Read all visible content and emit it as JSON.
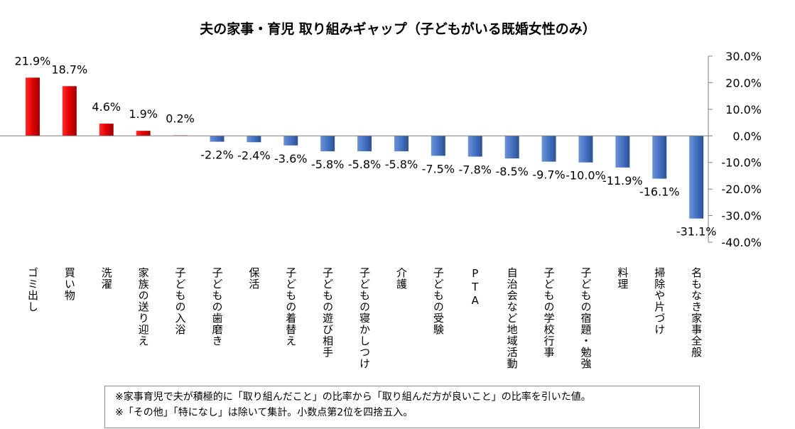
{
  "chart_data": {
    "type": "bar",
    "title": "夫の家事・育児 取り組みギャップ（子どもがいる既婚女性のみ）",
    "categories": [
      "ゴミ出し",
      "買い物",
      "洗濯",
      "家族の送り迎え",
      "子どもの入浴",
      "子どもの歯磨き",
      "保活",
      "子どもの着替え",
      "子どもの遊び相手",
      "子どもの寝かしつけ",
      "介護",
      "子どもの受験",
      "PTA",
      "自治会など地域活動",
      "子どもの学校行事",
      "子どもの宿題・勉強",
      "料理",
      "掃除や片づけ",
      "名もなき家事全般"
    ],
    "values": [
      21.9,
      18.7,
      4.6,
      1.9,
      0.2,
      -2.2,
      -2.4,
      -3.6,
      -5.8,
      -5.8,
      -5.8,
      -7.5,
      -7.8,
      -8.5,
      -9.7,
      -10.0,
      -11.9,
      -16.1,
      -31.1
    ],
    "data_labels": [
      "21.9%",
      "18.7%",
      "4.6%",
      "1.9%",
      "0.2%",
      "-2.2%",
      "-2.4%",
      "-3.6%",
      "-5.8%",
      "-5.8%",
      "-5.8%",
      "-7.5%",
      "-7.8%",
      "-8.5%",
      "-9.7%",
      "-10.0%",
      "-11.9%",
      "-16.1%",
      "-31.1%"
    ],
    "yticks": [
      30,
      20,
      10,
      0,
      -10,
      -20,
      -30,
      -40
    ],
    "ytick_labels": [
      "30.0%",
      "20.0%",
      "10.0%",
      "0.0%",
      "-10.0%",
      "-20.0%",
      "-30.0%",
      "-40.0%"
    ],
    "ylim": [
      -40,
      30
    ],
    "y_axis_position": "right",
    "xlabel": "",
    "ylabel": "",
    "colors": {
      "positive": "#e00000",
      "negative": "#4472c4",
      "axis": "#7f7f7f"
    }
  },
  "notes": [
    "※家事育児で夫が積極的に「取り組んだこと」の比率から「取り組んだ方が良いこと」の比率を引いた値。",
    "※「その他」「特になし」は除いて集計。小数点第2位を四捨五入。"
  ]
}
